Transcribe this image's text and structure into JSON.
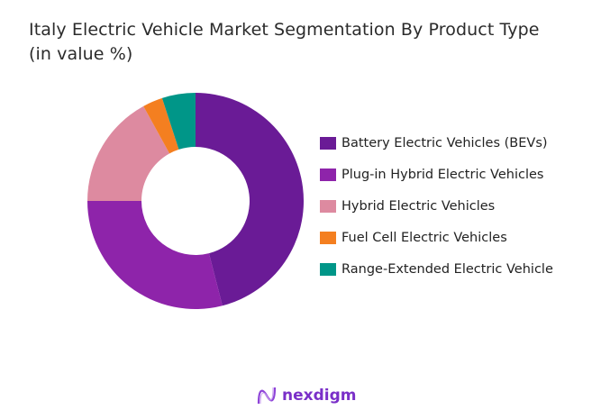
{
  "chart_data": {
    "type": "pie",
    "donut": true,
    "title": "Italy Electric Vehicle Market Segmentation By Product Type",
    "subtitle": "(in value %)",
    "categories": [
      "Battery Electric Vehicles (BEVs)",
      "Plug-in Hybrid Electric Vehicles",
      "Hybrid Electric Vehicles",
      "Fuel Cell Electric Vehicles",
      "Range-Extended Electric Vehicle"
    ],
    "values": [
      46,
      29,
      17,
      3,
      5
    ],
    "colors": [
      "#6a1b96",
      "#8e24aa",
      "#dd8aa0",
      "#f47f20",
      "#009688"
    ],
    "legend_position": "right"
  },
  "brand": {
    "name": "nexdigm",
    "color": "#7a2fc8"
  }
}
